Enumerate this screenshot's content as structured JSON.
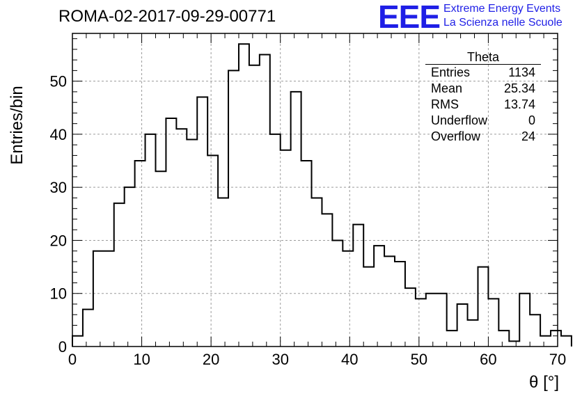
{
  "header": {
    "run_title": "ROMA-02-2017-09-29-00771",
    "logo_text": "EEE",
    "logo_line1": "Extreme Energy Events",
    "logo_line2": "La Scienza nelle Scuole",
    "logo_color": "#1f1fe6"
  },
  "stats_box": {
    "title": "Theta",
    "rows": [
      {
        "label": "Entries",
        "value": "1134"
      },
      {
        "label": "Mean",
        "value": "25.34"
      },
      {
        "label": "RMS",
        "value": "13.74"
      },
      {
        "label": "Underflow",
        "value": "0"
      },
      {
        "label": "Overflow",
        "value": "24"
      }
    ]
  },
  "chart_data": {
    "type": "histogram",
    "xlabel": "θ [°]",
    "ylabel": "Entries/bin",
    "xlim": [
      0,
      70
    ],
    "ylim": [
      0,
      59
    ],
    "xticks": [
      0,
      10,
      20,
      30,
      40,
      50,
      60,
      70
    ],
    "yticks": [
      0,
      10,
      20,
      30,
      40,
      50
    ],
    "grid": true,
    "bin_width": 1.5,
    "bin_edges_start": 0,
    "values": [
      2,
      7,
      18,
      18,
      27,
      30,
      35,
      40,
      33,
      43,
      41,
      39,
      47,
      36,
      28,
      52,
      57,
      53,
      55,
      40,
      37,
      48,
      35,
      28,
      25,
      20,
      18,
      23,
      15,
      19,
      17,
      16,
      11,
      9,
      10,
      10,
      3,
      8,
      5,
      15,
      9,
      3,
      1,
      10,
      6,
      2,
      3,
      2
    ],
    "line_color": "#000000"
  }
}
